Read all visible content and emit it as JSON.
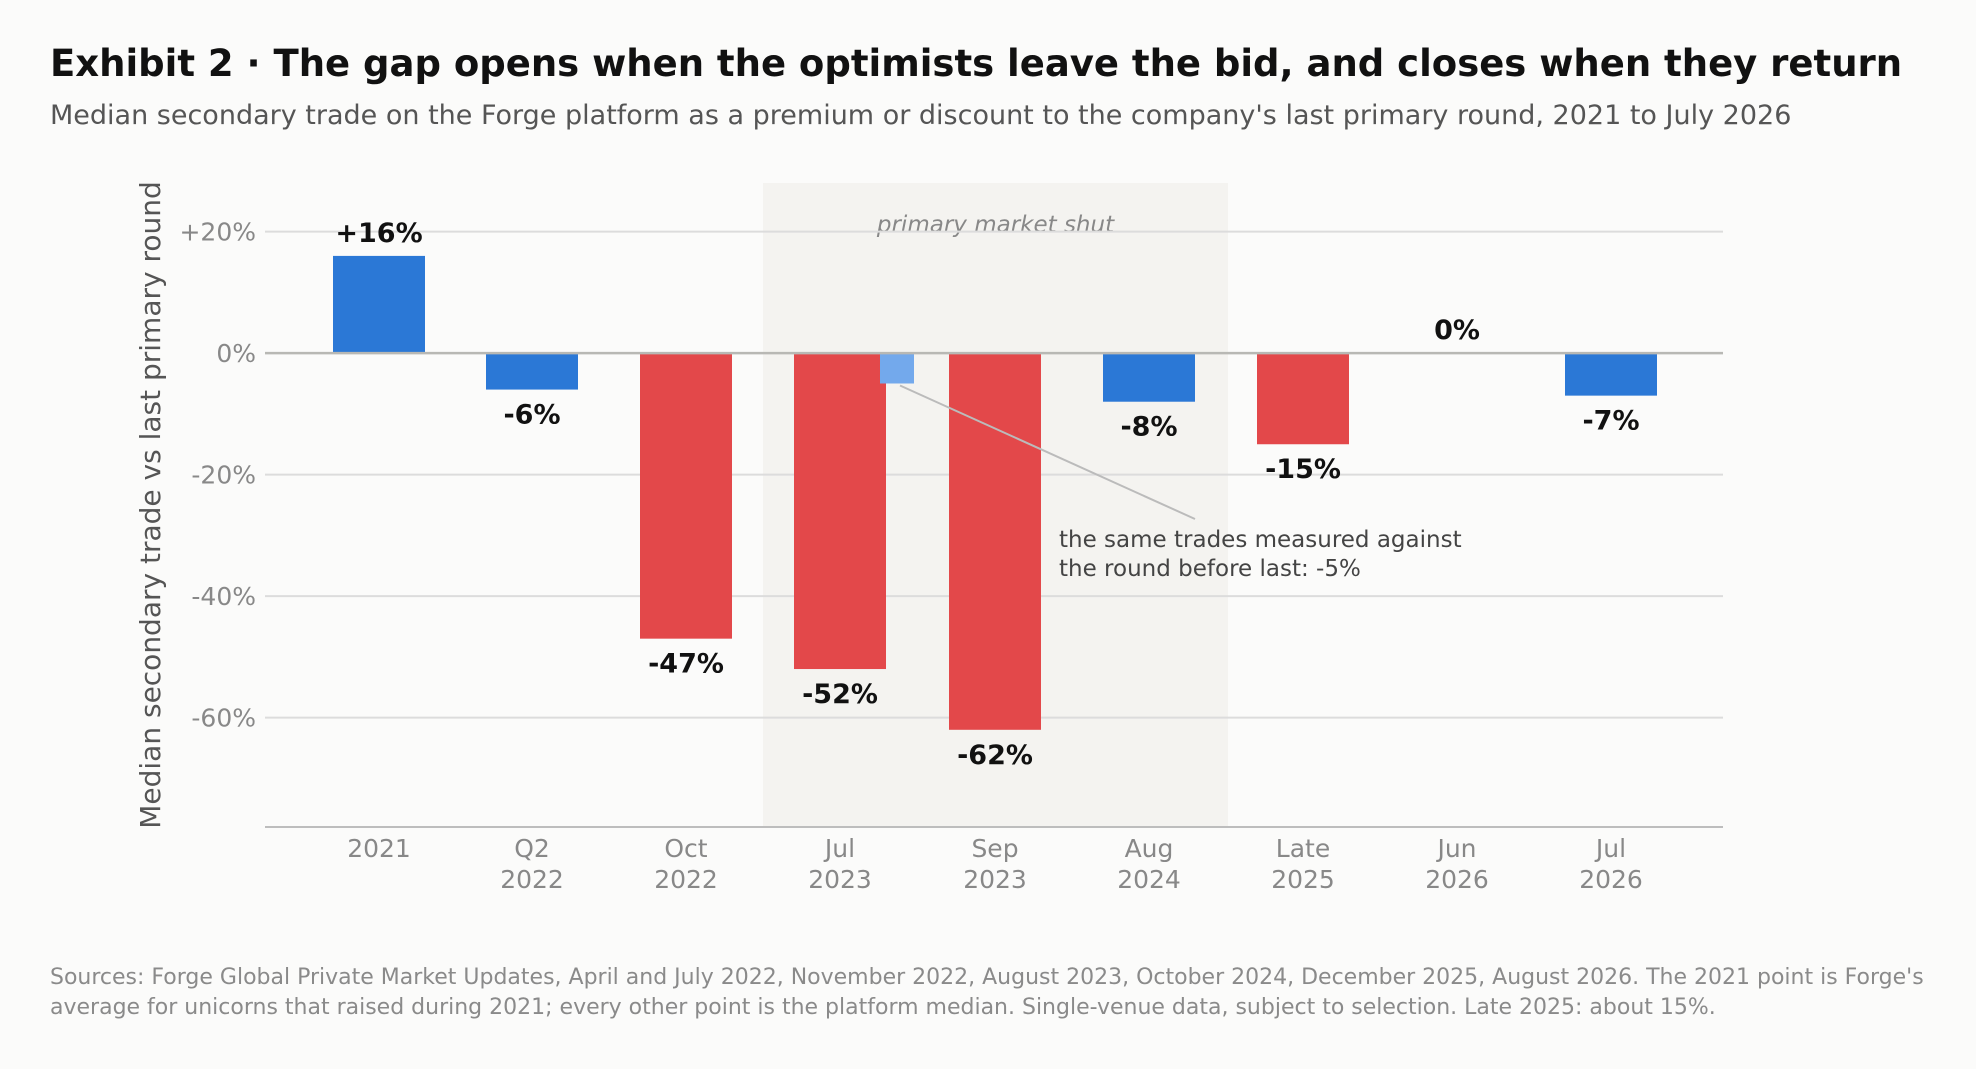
{
  "title": "Exhibit 2 · The gap opens when the optimists leave the bid, and closes when they return",
  "subtitle": "Median secondary trade on the Forge platform as a premium or discount to the company's last primary round, 2021 to July 2026",
  "sources": "Sources: Forge Global Private Market Updates, April and July 2022, November 2022, August 2023, October 2024, December 2025, August 2026. The 2021 point is Forge's average for unicorns that raised during 2021; every other point is the platform median. Single-venue data, subject to selection. Late 2025: about 15%.",
  "colors": {
    "premium": "#2b78d6",
    "discount": "#e3484a",
    "alt_measure": "#73a9ec",
    "shade": "#f4f3f0"
  },
  "chart_data": {
    "type": "bar",
    "ylabel": "Median secondary trade vs last primary round",
    "xlabel": "",
    "ylim": [
      -78,
      28
    ],
    "yticks": [
      20,
      0,
      -20,
      -40,
      -60
    ],
    "ytick_labels": [
      "+20%",
      "0%",
      "-20%",
      "-40%",
      "-60%"
    ],
    "grid": true,
    "categories": [
      [
        "2021"
      ],
      [
        "Q2",
        "2022"
      ],
      [
        "Oct",
        "2022"
      ],
      [
        "Jul",
        "2023"
      ],
      [
        "Sep",
        "2023"
      ],
      [
        "Aug",
        "2024"
      ],
      [
        "Late",
        "2025"
      ],
      [
        "Jun",
        "2026"
      ],
      [
        "Jul",
        "2026"
      ]
    ],
    "values": [
      16,
      -6,
      -47,
      -52,
      -62,
      -8,
      -15,
      0,
      -7
    ],
    "value_labels": [
      "+16%",
      "-6%",
      "-47%",
      "-52%",
      "-62%",
      "-8%",
      "-15%",
      "0%",
      "-7%"
    ],
    "bar_colors": [
      "premium",
      "premium",
      "discount",
      "discount",
      "discount",
      "premium",
      "discount",
      "premium",
      "premium"
    ],
    "secondary_measure": {
      "category_index": 3,
      "value": -5,
      "annotation": [
        "the same trades measured against",
        "the round before last: -5%"
      ]
    },
    "shaded_region": {
      "from_category": 3,
      "to_category": 4,
      "label": "primary market shut"
    }
  }
}
